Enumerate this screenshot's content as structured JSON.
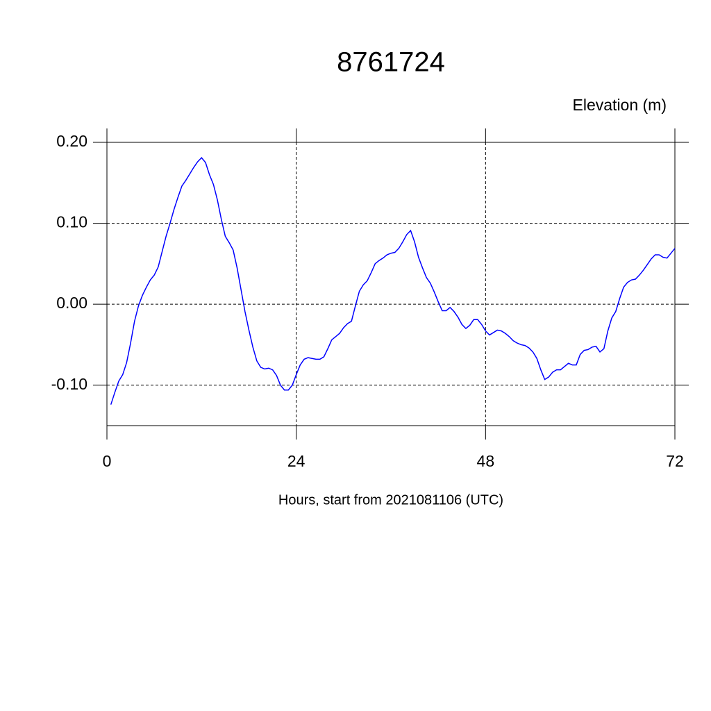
{
  "chart_data": {
    "type": "line",
    "title": "8761724",
    "subtitle": "Elevation (m)",
    "x_label": "Hours, start from 2021081106 (UTC)",
    "x": [
      0.5,
      1,
      1.5,
      2,
      2.5,
      3,
      3.5,
      4,
      4.5,
      5,
      5.5,
      6,
      6.5,
      7,
      7.5,
      8,
      8.5,
      9,
      9.5,
      10,
      10.5,
      11,
      11.5,
      12,
      12.5,
      13,
      13.5,
      14,
      14.5,
      15,
      15.5,
      16,
      16.5,
      17,
      17.5,
      18,
      18.5,
      19,
      19.5,
      20,
      20.5,
      21,
      21.5,
      22,
      22.5,
      23,
      23.5,
      24,
      24.5,
      25,
      25.5,
      26,
      26.5,
      27,
      27.5,
      28,
      28.5,
      29,
      29.5,
      30,
      30.5,
      31,
      31.5,
      32,
      32.5,
      33,
      33.5,
      34,
      34.5,
      35,
      35.5,
      36,
      36.5,
      37,
      37.5,
      38,
      38.5,
      39,
      39.5,
      40,
      40.5,
      41,
      41.5,
      42,
      42.5,
      43,
      43.5,
      44,
      44.5,
      45,
      45.5,
      46,
      46.5,
      47,
      47.5,
      48,
      48.5,
      49,
      49.5,
      50,
      50.5,
      51,
      51.5,
      52,
      52.5,
      53,
      53.5,
      54,
      54.5,
      55,
      55.5,
      56,
      56.5,
      57,
      57.5,
      58,
      58.5,
      59,
      59.5,
      60,
      60.5,
      61,
      61.5,
      62,
      62.5,
      63,
      63.5,
      64,
      64.5,
      65,
      65.5,
      66,
      66.5,
      67,
      67.5,
      68,
      68.5,
      69,
      69.5,
      70,
      70.5,
      71,
      71.5,
      72
    ],
    "series": [
      {
        "color": "#0000ff",
        "values": [
          -0.124,
          -0.109,
          -0.095,
          -0.087,
          -0.072,
          -0.048,
          -0.021,
          -0.002,
          0.011,
          0.021,
          0.03,
          0.036,
          0.046,
          0.065,
          0.084,
          0.1,
          0.117,
          0.132,
          0.146,
          0.153,
          0.161,
          0.169,
          0.176,
          0.181,
          0.175,
          0.16,
          0.148,
          0.129,
          0.105,
          0.084,
          0.076,
          0.067,
          0.045,
          0.018,
          -0.009,
          -0.032,
          -0.053,
          -0.07,
          -0.078,
          -0.08,
          -0.079,
          -0.081,
          -0.088,
          -0.1,
          -0.106,
          -0.106,
          -0.1,
          -0.087,
          -0.075,
          -0.068,
          -0.066,
          -0.067,
          -0.068,
          -0.068,
          -0.065,
          -0.055,
          -0.044,
          -0.04,
          -0.036,
          -0.029,
          -0.024,
          -0.021,
          -0.002,
          0.016,
          0.024,
          0.029,
          0.039,
          0.05,
          0.054,
          0.057,
          0.061,
          0.063,
          0.064,
          0.069,
          0.077,
          0.086,
          0.091,
          0.077,
          0.058,
          0.045,
          0.033,
          0.026,
          0.015,
          0.003,
          -0.008,
          -0.008,
          -0.004,
          -0.009,
          -0.016,
          -0.025,
          -0.03,
          -0.026,
          -0.019,
          -0.019,
          -0.025,
          -0.033,
          -0.038,
          -0.035,
          -0.032,
          -0.033,
          -0.036,
          -0.04,
          -0.045,
          -0.048,
          -0.05,
          -0.051,
          -0.054,
          -0.059,
          -0.067,
          -0.081,
          -0.093,
          -0.09,
          -0.084,
          -0.081,
          -0.081,
          -0.077,
          -0.073,
          -0.075,
          -0.075,
          -0.062,
          -0.057,
          -0.056,
          -0.053,
          -0.052,
          -0.059,
          -0.055,
          -0.033,
          -0.017,
          -0.009,
          0.007,
          0.021,
          0.027,
          0.03,
          0.031,
          0.036,
          0.042,
          0.049,
          0.056,
          0.061,
          0.061,
          0.058,
          0.057,
          0.063,
          0.069
        ]
      }
    ],
    "xlim": [
      0,
      72
    ],
    "xticks": [
      0,
      24,
      48,
      72
    ],
    "ylim": [
      -0.15,
      0.2
    ],
    "yticks": [
      {
        "value": -0.1,
        "label": "-0.10"
      },
      {
        "value": 0,
        "label": "0.00"
      },
      {
        "value": 0.1,
        "label": "0.10"
      },
      {
        "value": 0.2,
        "label": "0.20"
      }
    ],
    "grid": true
  }
}
